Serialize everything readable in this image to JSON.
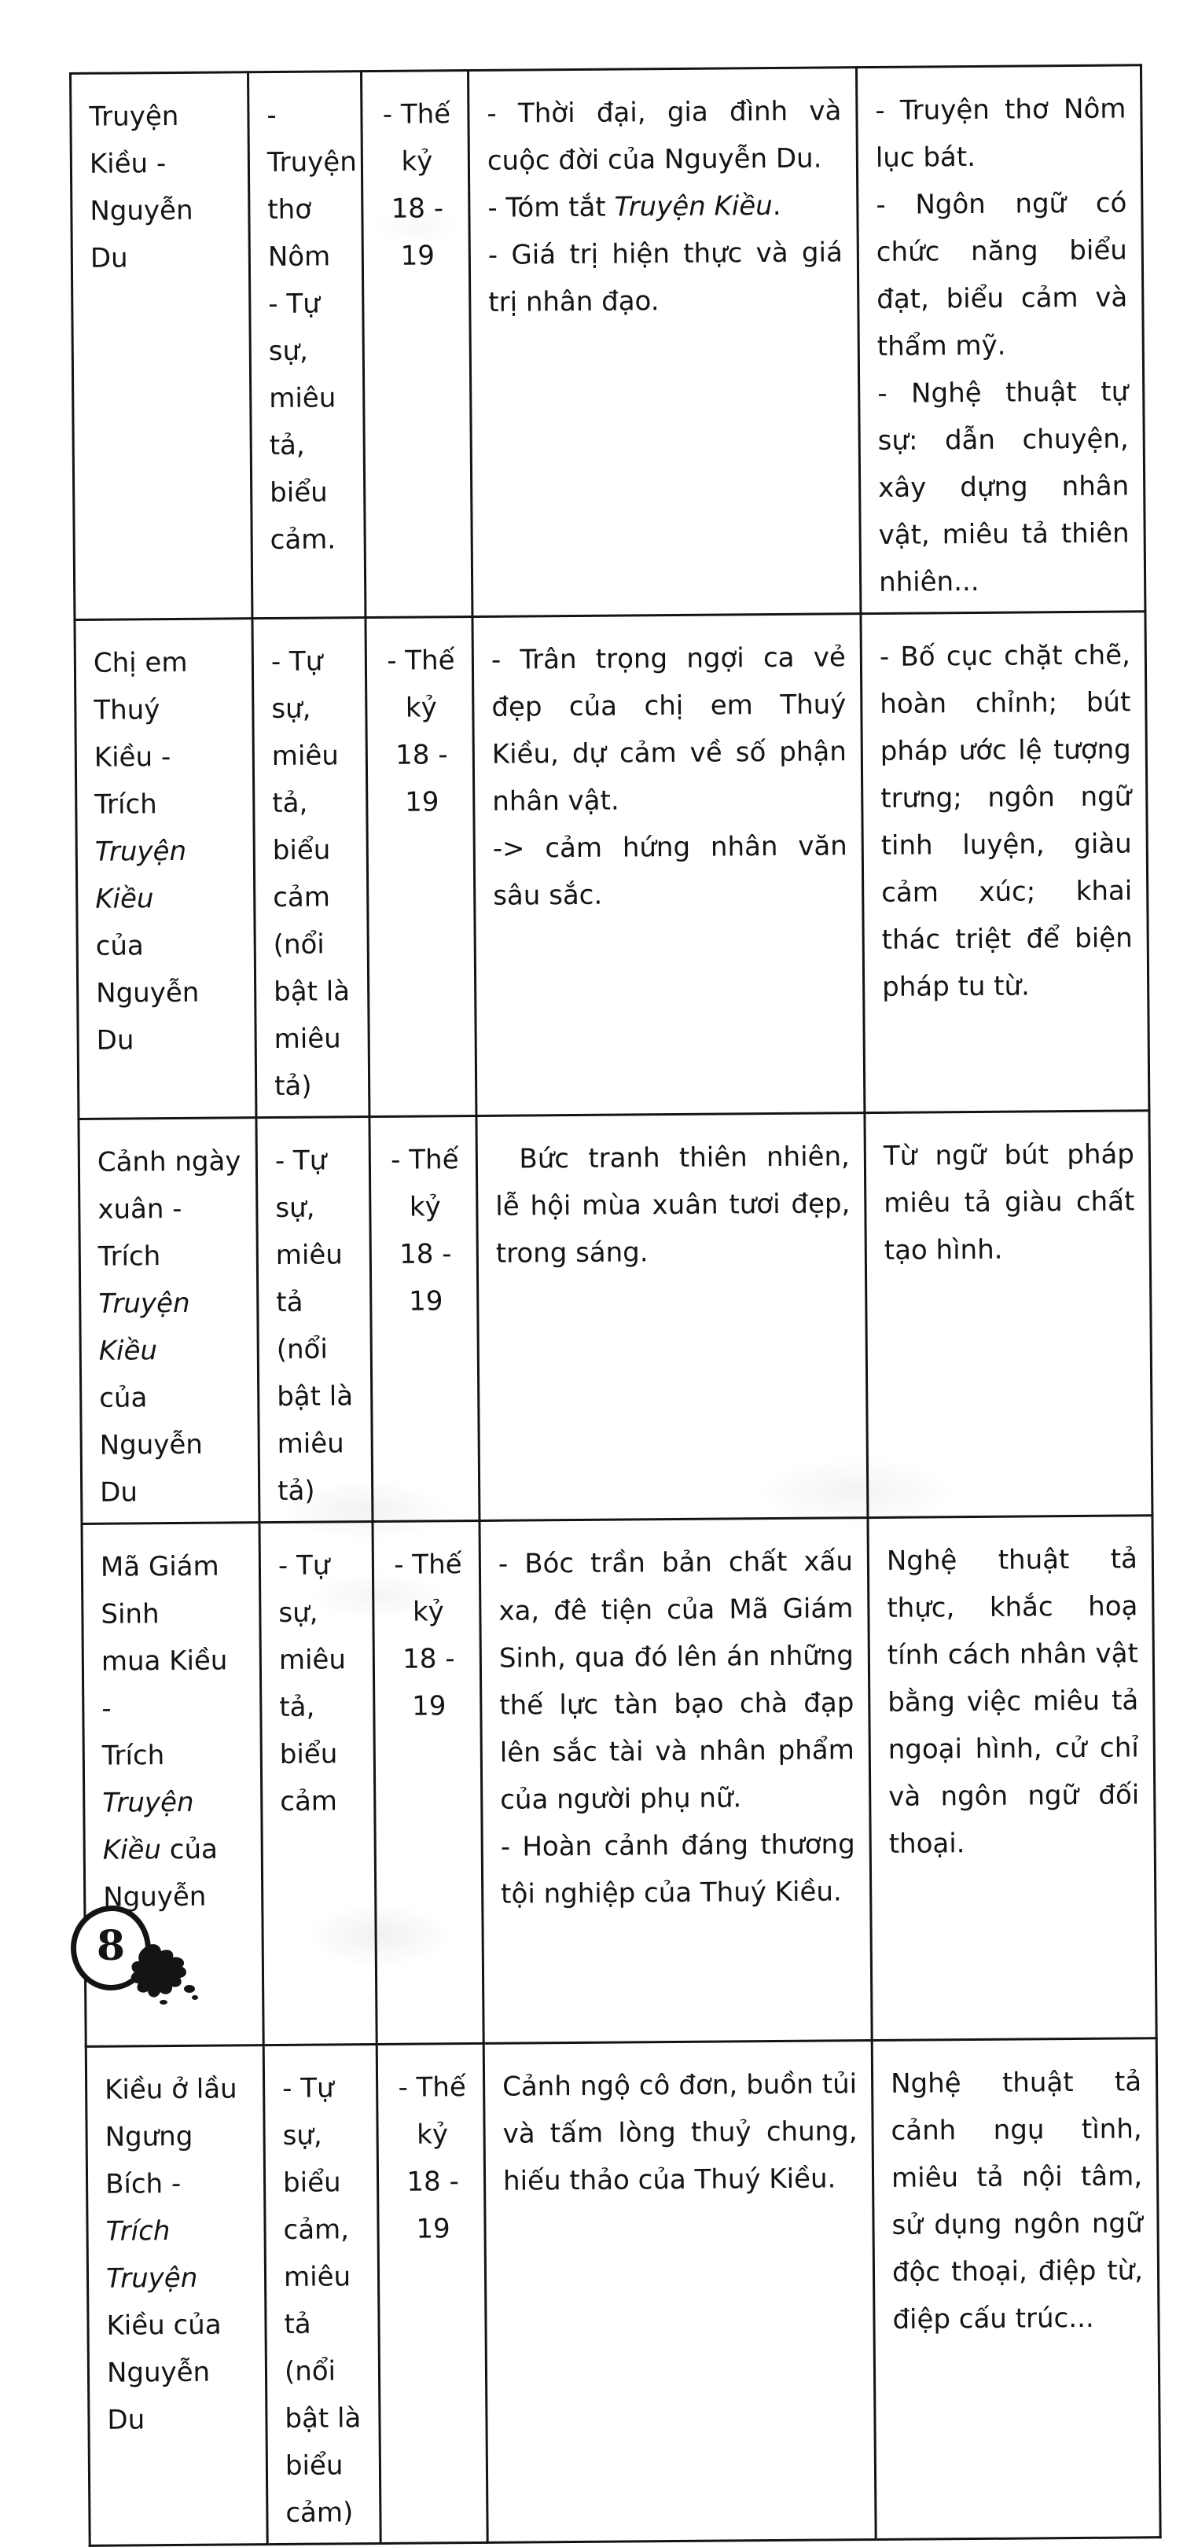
{
  "colors": {
    "paper": "#ffffff",
    "ink": "#141414"
  },
  "table": {
    "rows": [
      {
        "cells": [
          {
            "align": "left",
            "paras": [
              [
                "Truyện Kiều -"
              ],
              [
                "Nguyễn Du"
              ]
            ]
          },
          {
            "align": "left",
            "paras": [
              [
                "- Truyện"
              ],
              [
                "thơ Nôm"
              ],
              [
                "- Tự sự,"
              ],
              [
                "miêu tả,"
              ],
              [
                "biểu cảm."
              ]
            ]
          },
          {
            "align": "center",
            "paras": [
              [
                "- Thế kỷ"
              ],
              [
                "18 - 19"
              ]
            ]
          },
          {
            "align": "justify",
            "paras": [
              [
                "- Thời đại, gia đình và cuộc đời của Nguyễn Du."
              ],
              [
                "- Tóm tắt ",
                {
                  "t": "Truyện Kiều",
                  "i": 1
                },
                "."
              ],
              [
                "- Giá trị hiện thực và giá trị nhân đạo."
              ]
            ]
          },
          {
            "align": "justify",
            "paras": [
              [
                "- Truyện thơ Nôm lục bát."
              ],
              [
                "- Ngôn ngữ có chức năng biểu đạt, biểu cảm và thẩm mỹ."
              ],
              [
                "- Nghệ thuật tự sự: dẫn chuyện, xây dựng nhân vật, miêu tả thiên nhiên..."
              ]
            ]
          }
        ]
      },
      {
        "cells": [
          {
            "align": "left",
            "paras": [
              [
                "Chị em Thuý"
              ],
              [
                "Kiều - Trích"
              ],
              [
                {
                  "t": "Truyện Kiều",
                  "i": 1
                }
              ],
              [
                "của Nguyễn"
              ],
              [
                "Du"
              ]
            ]
          },
          {
            "align": "left",
            "paras": [
              [
                "- Tự sự,"
              ],
              [
                "miêu tả,"
              ],
              [
                "biểu cảm"
              ],
              [
                "(nổi bật là"
              ],
              [
                "miêu tả)"
              ]
            ]
          },
          {
            "align": "center",
            "paras": [
              [
                "- Thế kỷ"
              ],
              [
                "18 - 19"
              ]
            ]
          },
          {
            "align": "justify",
            "paras": [
              [
                "- Trân trọng ngợi ca vẻ đẹp của chị em Thuý Kiều, dự cảm về số phận nhân vật."
              ],
              [
                "-> cảm hứng nhân văn sâu sắc."
              ]
            ]
          },
          {
            "align": "justify",
            "paras": [
              [
                "- Bố cục chặt chẽ, hoàn chỉnh; bút pháp ước lệ tượng trưng; ngôn ngữ tinh luyện, giàu cảm xúc; khai thác triệt để biện pháp tu từ."
              ]
            ]
          }
        ]
      },
      {
        "cells": [
          {
            "align": "left",
            "paras": [
              [
                "Cảnh ngày"
              ],
              [
                "xuân - Trích"
              ],
              [
                {
                  "t": "Truyện Kiều",
                  "i": 1
                }
              ],
              [
                "của Nguyễn"
              ],
              [
                "Du"
              ]
            ]
          },
          {
            "align": "left",
            "paras": [
              [
                "- Tự sự,"
              ],
              [
                "miêu tả"
              ],
              [
                "(nổi bật là"
              ],
              [
                "miêu tả)"
              ]
            ]
          },
          {
            "align": "center",
            "paras": [
              [
                "- Thế kỷ"
              ],
              [
                "18 - 19"
              ]
            ]
          },
          {
            "align": "justify",
            "indent": true,
            "paras": [
              [
                "Bức tranh thiên nhiên, lễ hội mùa xuân tươi đẹp, trong sáng."
              ]
            ]
          },
          {
            "align": "justify",
            "paras": [
              [
                "Từ ngữ bút pháp miêu tả giàu chất tạo hình."
              ]
            ]
          }
        ]
      },
      {
        "cells": [
          {
            "align": "left",
            "paras": [
              [
                "Mã Giám Sinh"
              ],
              [
                "mua Kiều -"
              ],
              [
                "Trích ",
                {
                  "t": "Truyện",
                  "i": 1
                }
              ],
              [
                {
                  "t": "Kiều",
                  "i": 1
                },
                " của"
              ],
              [
                "Nguyễn Du"
              ]
            ]
          },
          {
            "align": "left",
            "paras": [
              [
                "- Tự sự,"
              ],
              [
                "miêu tả,"
              ],
              [
                "biểu cảm"
              ]
            ]
          },
          {
            "align": "center",
            "paras": [
              [
                "- Thế kỷ"
              ],
              [
                "18 - 19"
              ]
            ]
          },
          {
            "align": "justify",
            "paras": [
              [
                "- Bóc trần bản chất xấu xa, đê tiện của Mã Giám Sinh, qua đó lên án những thế lực tàn bạo chà đạp lên sắc tài và nhân phẩm của người phụ nữ."
              ],
              [
                "- Hoàn cảnh đáng thương tội nghiệp của Thuý Kiều."
              ]
            ]
          },
          {
            "align": "justify",
            "paras": [
              [
                "Nghệ thuật tả thực, khắc hoạ tính cách nhân vật bằng việc miêu tả ngoại hình, cử chỉ và ngôn ngữ đối thoại."
              ]
            ]
          }
        ]
      },
      {
        "cells": [
          {
            "align": "left",
            "paras": [
              [
                "Kiều ở lầu"
              ],
              [
                "Ngưng Bích -"
              ],
              [
                {
                  "t": "Trích Truyện",
                  "i": 1
                }
              ],
              [
                "Kiều của"
              ],
              [
                "Nguyễn Du"
              ]
            ]
          },
          {
            "align": "left",
            "paras": [
              [
                "- Tự sự,"
              ],
              [
                "biểu cảm,"
              ],
              [
                "miêu tả"
              ],
              [
                "(nổi bật là"
              ],
              [
                "biểu cảm)"
              ]
            ]
          },
          {
            "align": "center",
            "paras": [
              [
                "- Thế kỷ"
              ],
              [
                "18 - 19"
              ]
            ]
          },
          {
            "align": "justify",
            "paras": [
              [
                "Cảnh ngộ cô đơn, buồn tủi và tấm lòng thuỷ chung, hiếu thảo của Thuý Kiều."
              ]
            ]
          },
          {
            "align": "justify",
            "paras": [
              [
                "Nghệ thuật tả cảnh ngụ tình, miêu tả nội tâm, sử dụng ngôn ngữ độc thoại, điệp từ, điệp cấu trúc..."
              ]
            ]
          }
        ]
      }
    ]
  },
  "footer": {
    "page_number": "8"
  }
}
